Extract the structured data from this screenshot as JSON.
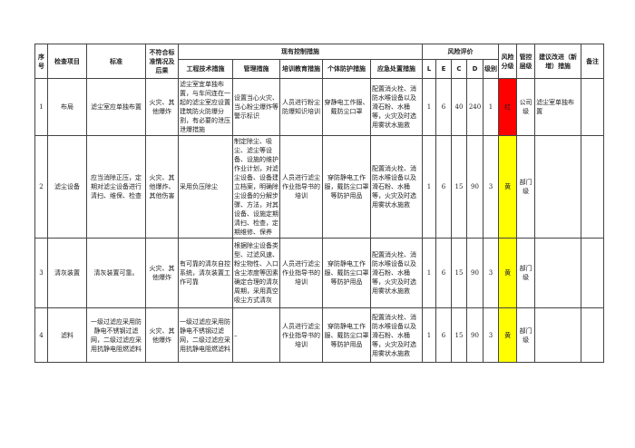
{
  "table": {
    "headers": {
      "no": "序号",
      "item": "检查项目",
      "standard": "标准",
      "consequence": "不符合标准情况及后果",
      "controls": "现有控制措施",
      "engineering": "工程技术措施",
      "management": "管理措施",
      "training": "培训教育措施",
      "ppe": "个体防护措施",
      "emergency": "应急处置措施",
      "evaluation": "风险评价",
      "L": "L",
      "E": "E",
      "C": "C",
      "D": "D",
      "level": "级别",
      "grade": "风险分级",
      "control_level": "管控层级",
      "improvement": "建议改进（新增）措施",
      "remark": "备注"
    },
    "rows": [
      {
        "no": 1,
        "item": "布局",
        "standard": "滤尘室应单独布置",
        "consequence": "火灾、其他爆炸",
        "engineering": "滤尘室宜单独布置，与车间连在一起的滤尘室应设置建筑防火防爆分割，有必要的泄压泄爆措施",
        "management": "设置当心火灾、当心粉尘爆炸等警示标识",
        "training": "人员进行粉尘防爆知识培训",
        "ppe": "穿静电工作服、戴防尘口罩",
        "emergency": "配置消火栓、消防水喉设备以及滑石粉、水桶等，火灾及时选用雾状水施救",
        "L": 1,
        "E": 6,
        "C": 40,
        "D": 240,
        "level": 1,
        "grade": "红",
        "grade_color": "#ff0000",
        "control_level": "公司级",
        "improvement": "滤尘室单独布置"
      },
      {
        "no": 2,
        "item": "滤尘设备",
        "standard": "应当消除正压，定期对滤尘设备进行清扫、维保、检查",
        "consequence": "火灾、其他爆炸、其他伤害",
        "engineering": "采用负压除尘",
        "management": "制定除尘、吸尘、滤尘等设备、设施的维护作业计划，对滤尘设备、设备建立档案，明确除尘设备的分解步骤、方法，对其设备、设施定期清扫、检查，定期维修、保养",
        "training": "人员进行滤尘作业指导书的培训",
        "ppe": "穿防静电工作服，戴防尘口罩等防护用品",
        "emergency": "配置消火栓、消防水喉设备以及滑石粉、水桶等，火灾及时选用雾状水施救",
        "L": 1,
        "E": 6,
        "C": 15,
        "D": 90,
        "level": 3,
        "grade": "黄",
        "grade_color": "#ffff00",
        "control_level": "部门级"
      },
      {
        "no": 3,
        "item": "清灰装置",
        "standard": "清灰装置可靠。",
        "consequence": "火灾、其他爆炸",
        "engineering": "有可靠的清灰自控系统，清灰装置工作可靠",
        "management": "根据除尘设备类型、过滤风速、粉尘物性、入口含尘浓度等因素确定合理的清灰周期，采用真空吸尘方式清灰",
        "training": "人员进行滤尘作业指导书的培训",
        "ppe": "穿防静电工作服、戴防尘口罩等防护用品",
        "emergency": "配置消火栓、消防水喉设备以及滑石粉、水桶等，火灾及时选用雾状水施救",
        "L": 1,
        "E": 6,
        "C": 15,
        "D": 90,
        "level": 3,
        "grade": "黄",
        "grade_color": "#ffff00",
        "control_level": "部门级"
      },
      {
        "no": 4,
        "item": "滤料",
        "standard": "一级过滤应采用防静电不锈钢过滤网，二级过滤应采用抗静电阻燃滤料",
        "consequence": "火灾、其他爆炸",
        "engineering": "一级过滤应采用防静电不锈钢过滤网，二级过滤应采用抗静电阻燃滤料",
        "management": "–",
        "training": "人员进行滤尘作业指导书的培训",
        "ppe": "穿防静电工作服、戴防尘口罩等防护用品",
        "emergency": "配置消火栓、消防水喉设备以及滑石粉、水桶等，火灾及时选用雾状水施救",
        "L": 1,
        "E": 6,
        "C": 15,
        "D": 90,
        "level": 3,
        "grade": "黄",
        "grade_color": "#ffff00",
        "control_level": "部门级"
      }
    ]
  }
}
